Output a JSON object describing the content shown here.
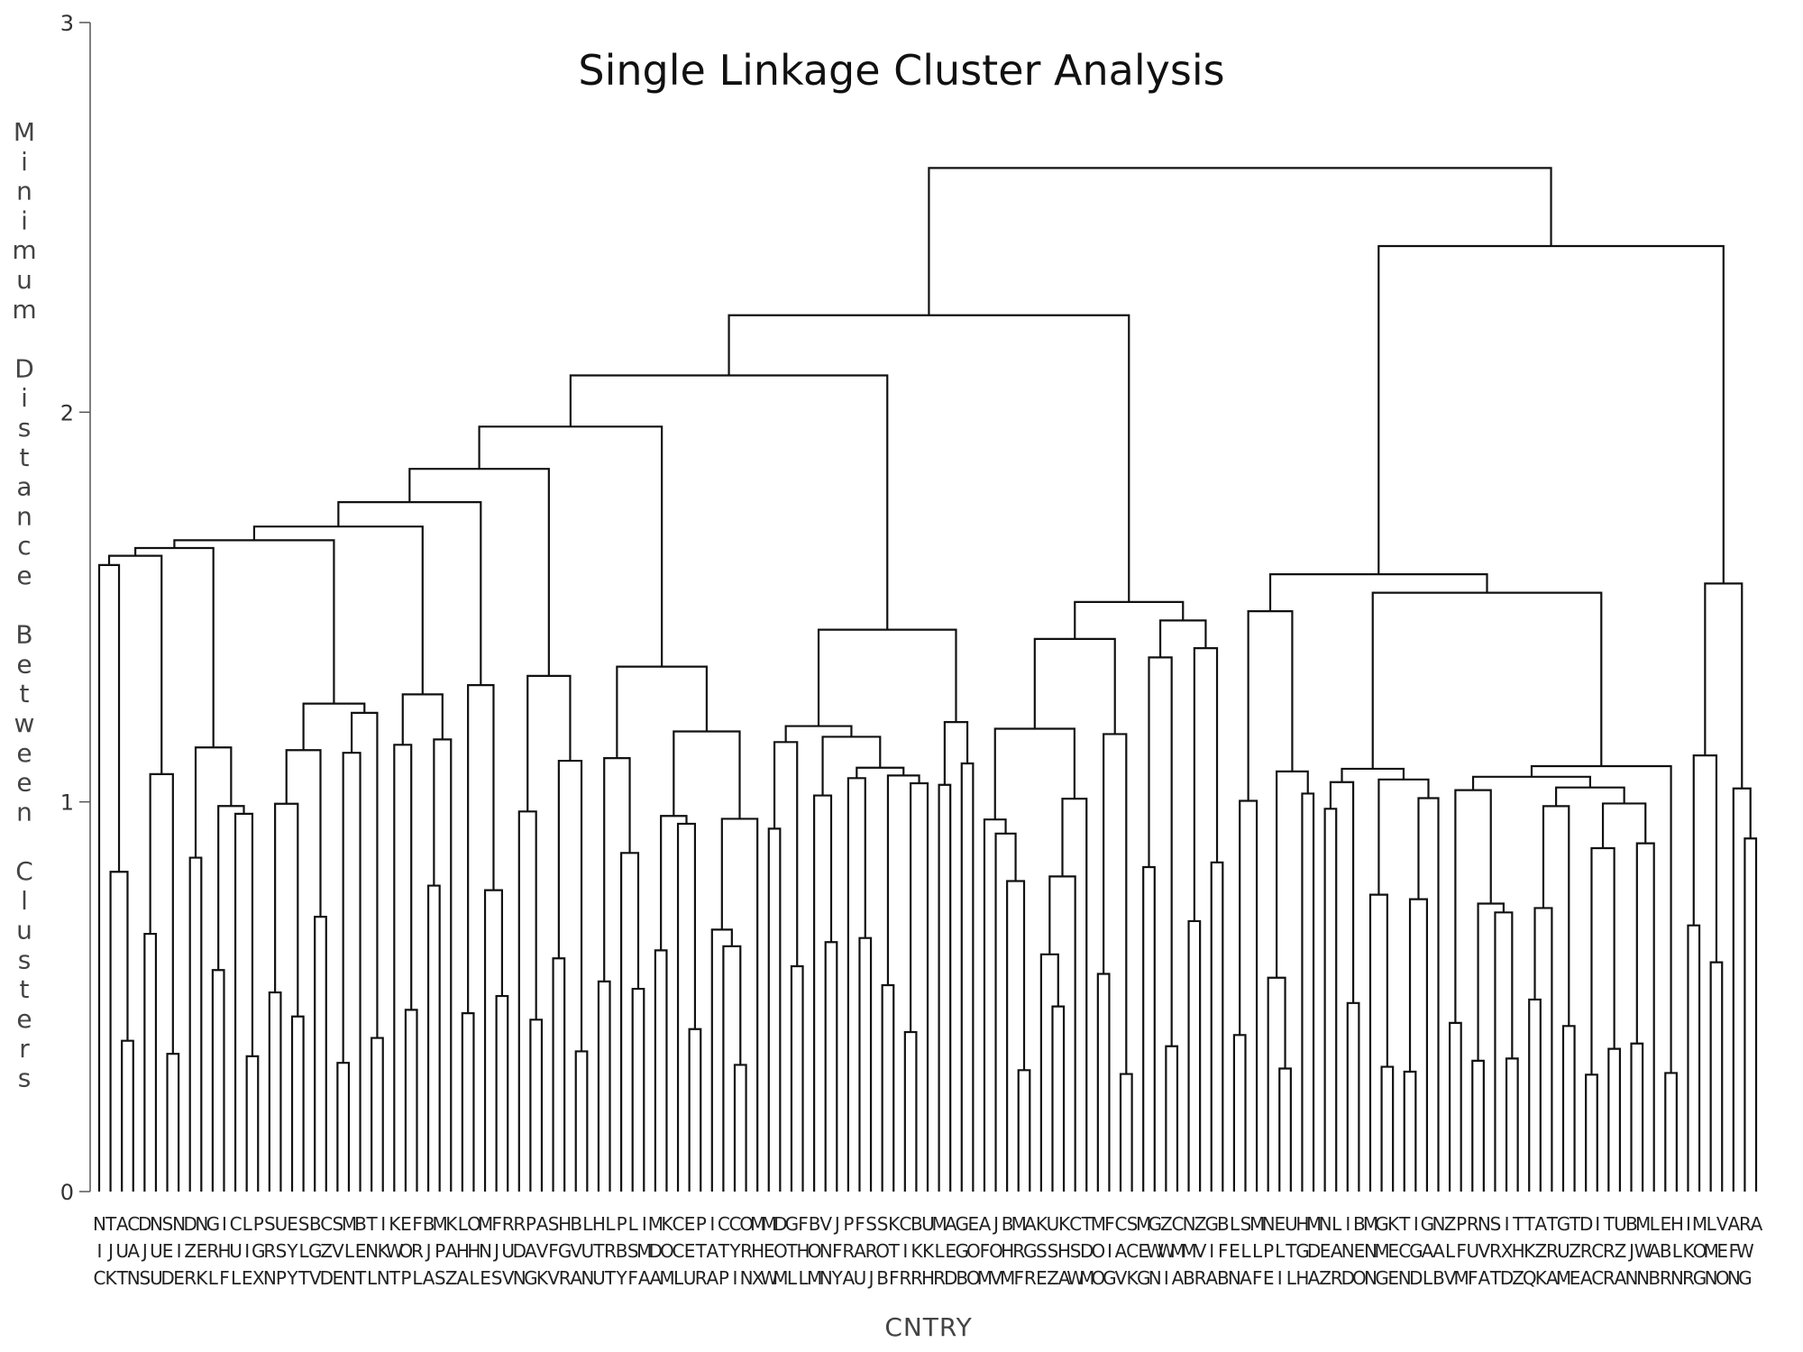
{
  "chart_data": {
    "type": "dendrogram",
    "title": "Single Linkage Cluster Analysis",
    "xlabel": "CNTRY",
    "ylabel": "Minimum Distance Between Clusters",
    "ylim": [
      0,
      3
    ],
    "yticks": [
      0,
      1,
      2,
      3
    ],
    "leaf_labels": [
      "NIC",
      "TJK",
      "AUT",
      "CAN",
      "DJS",
      "NUU",
      "SED",
      "NIE",
      "DZR",
      "NEK",
      "GRL",
      "IHF",
      "CUL",
      "LIE",
      "PGX",
      "SRN",
      "USP",
      "EYY",
      "SLT",
      "BGV",
      "CZD",
      "SVE",
      "MLN",
      "BET",
      "TNL",
      "IKN",
      "KWT",
      "EOP",
      "FRL",
      "BJA",
      "MPS",
      "KAZ",
      "LHA",
      "OHL",
      "MNE",
      "FJS",
      "RUV",
      "RDN",
      "PAG",
      "AVK",
      "SFV",
      "HGR",
      "BVA",
      "LUN",
      "HTU",
      "LRT",
      "PBY",
      "LSF",
      "IMA",
      "MDA",
      "KOM",
      "CCL",
      "EEU",
      "PTR",
      "IAA",
      "CTP",
      "CYI",
      "ORN",
      "MHX",
      "MEW",
      "DOM",
      "GTL",
      "FHL",
      "BOM",
      "VNN",
      "JFY",
      "PRA",
      "FAU",
      "SRJ",
      "SOB",
      "KTF",
      "CIR",
      "BKR",
      "UKH",
      "MLR",
      "AED",
      "GGB",
      "EOO",
      "AFM",
      "JOV",
      "BHM",
      "MRF",
      "AGR",
      "KSE",
      "USZ",
      "KHA",
      "CSW",
      "TDM",
      "MOO",
      "FIG",
      "CAV",
      "SCK",
      "MEG",
      "GWN",
      "ZWI",
      "CMA",
      "NMB",
      "ZVR",
      "GIA",
      "BFB",
      "LEN",
      "SLA",
      "MLF",
      "NPE",
      "ELI",
      "UTL",
      "HGH",
      "MDA",
      "NEZ",
      "LAR",
      "IND",
      "BEO",
      "MNN",
      "GMG",
      "KEE",
      "TCN",
      "IGD",
      "GAL",
      "NAB",
      "ZLV",
      "PFM",
      "RUF",
      "NVA",
      "SRT",
      "IXD",
      "THZ",
      "TKQ",
      "AZK",
      "TRA",
      "GUM",
      "TZE",
      "DRA",
      "ICC",
      "TRR",
      "UZA",
      "BJN",
      "MWN",
      "LAB",
      "EBR",
      "HLN",
      "IKR",
      "MOG",
      "LMN",
      "VEO",
      "AFN",
      "RWG",
      "A"
    ]
  }
}
